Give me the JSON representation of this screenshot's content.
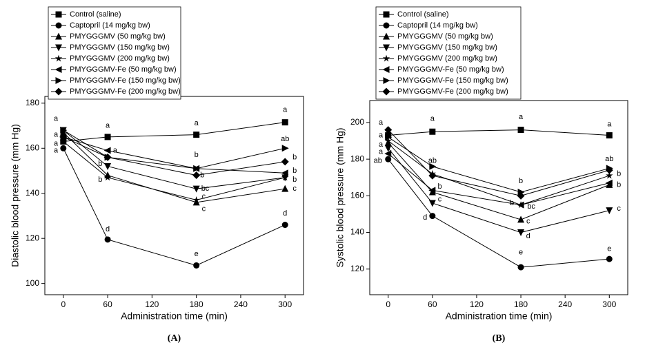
{
  "chart_data": [
    {
      "type": "line",
      "panel_label": "(A)",
      "xlabel": "Administration time (min)",
      "ylabel": "Diastolic blood pressure (mm Hg)",
      "x": [
        0,
        60,
        180,
        300
      ],
      "xlim": [
        -25,
        325
      ],
      "xticks": [
        0,
        60,
        120,
        180,
        240,
        300
      ],
      "ylim": [
        95,
        183
      ],
      "yticks": [
        100,
        120,
        140,
        160,
        180
      ],
      "series": [
        {
          "name": "Control (saline)",
          "marker": "square",
          "color": "#000000",
          "values": [
            163,
            165,
            166,
            171.5
          ]
        },
        {
          "name": "Captopril (14 mg/kg bw)",
          "marker": "circle",
          "color": "#000000",
          "values": [
            160,
            119.5,
            108,
            126
          ]
        },
        {
          "name": "PMYGGGMV (50 mg/kg bw)",
          "marker": "triangle-up",
          "color": "#000000",
          "values": [
            167,
            148,
            136,
            142
          ]
        },
        {
          "name": "PMYGGGMV (150 mg/kg bw)",
          "marker": "triangle-down",
          "color": "#000000",
          "values": [
            168,
            152,
            142,
            147
          ]
        },
        {
          "name": "PMYGGGMV (200 mg/kg bw)",
          "marker": "star",
          "color": "#000000",
          "values": [
            163,
            147,
            137,
            147
          ]
        },
        {
          "name": "PMYGGGMV-Fe (50 mg/kg bw)",
          "marker": "triangle-left",
          "color": "#000000",
          "values": [
            165,
            159,
            151,
            149
          ]
        },
        {
          "name": "PMYGGGMV-Fe (150 mg/kg bw)",
          "marker": "triangle-right",
          "color": "#000000",
          "values": [
            168,
            156,
            151,
            160
          ]
        },
        {
          "name": "PMYGGGMV-Fe (200 mg/kg bw)",
          "marker": "diamond",
          "color": "#000000",
          "values": [
            165,
            156,
            148,
            154
          ]
        }
      ],
      "annotations": [
        {
          "text": "a",
          "x": -10,
          "y": 173
        },
        {
          "text": "a",
          "x": -10,
          "y": 166
        },
        {
          "text": "a",
          "x": -10,
          "y": 162
        },
        {
          "text": "a",
          "x": -10,
          "y": 159
        },
        {
          "text": "a",
          "x": 60,
          "y": 170
        },
        {
          "text": "a",
          "x": 70,
          "y": 159
        },
        {
          "text": "b",
          "x": 50,
          "y": 153
        },
        {
          "text": "b",
          "x": 50,
          "y": 146
        },
        {
          "text": "d",
          "x": 60,
          "y": 124
        },
        {
          "text": "a",
          "x": 180,
          "y": 171
        },
        {
          "text": "b",
          "x": 180,
          "y": 157
        },
        {
          "text": "b",
          "x": 188,
          "y": 148
        },
        {
          "text": "bc",
          "x": 192,
          "y": 142
        },
        {
          "text": "c",
          "x": 190,
          "y": 138.5
        },
        {
          "text": "c",
          "x": 190,
          "y": 133
        },
        {
          "text": "e",
          "x": 180,
          "y": 113
        },
        {
          "text": "a",
          "x": 300,
          "y": 177
        },
        {
          "text": "ab",
          "x": 300,
          "y": 164
        },
        {
          "text": "b",
          "x": 313,
          "y": 156
        },
        {
          "text": "b",
          "x": 313,
          "y": 150
        },
        {
          "text": "b",
          "x": 313,
          "y": 146
        },
        {
          "text": "c",
          "x": 313,
          "y": 142
        },
        {
          "text": "d",
          "x": 300,
          "y": 131
        }
      ]
    },
    {
      "type": "line",
      "panel_label": "(B)",
      "xlabel": "Administration time (min)",
      "ylabel": "Systolic blood pressure (mm Hg)",
      "x": [
        0,
        60,
        180,
        300
      ],
      "xlim": [
        -25,
        325
      ],
      "xticks": [
        0,
        60,
        120,
        180,
        240,
        300
      ],
      "ylim": [
        106,
        212
      ],
      "yticks": [
        120,
        140,
        160,
        180,
        200
      ],
      "series": [
        {
          "name": "Control (saline)",
          "marker": "square",
          "color": "#000000",
          "values": [
            193,
            195,
            196,
            193
          ]
        },
        {
          "name": "Captopril (14 mg/kg bw)",
          "marker": "circle",
          "color": "#000000",
          "values": [
            180,
            149,
            121,
            125.5
          ]
        },
        {
          "name": "PMYGGGMV (50 mg/kg bw)",
          "marker": "triangle-up",
          "color": "#000000",
          "values": [
            189,
            162,
            147,
            166
          ]
        },
        {
          "name": "PMYGGGMV (150 mg/kg bw)",
          "marker": "triangle-down",
          "color": "#000000",
          "values": [
            186,
            156,
            140,
            152
          ]
        },
        {
          "name": "PMYGGGMV (200 mg/kg bw)",
          "marker": "star",
          "color": "#000000",
          "values": [
            190,
            172,
            155,
            171
          ]
        },
        {
          "name": "PMYGGGMV-Fe (50 mg/kg bw)",
          "marker": "triangle-left",
          "color": "#000000",
          "values": [
            183,
            163,
            155,
            167
          ]
        },
        {
          "name": "PMYGGGMV-Fe (150 mg/kg bw)",
          "marker": "triangle-right",
          "color": "#000000",
          "values": [
            192,
            176,
            162,
            175
          ]
        },
        {
          "name": "PMYGGGMV-Fe (200 mg/kg bw)",
          "marker": "diamond",
          "color": "#000000",
          "values": [
            196,
            171,
            160,
            174
          ]
        }
      ],
      "annotations": [
        {
          "text": "a",
          "x": -10,
          "y": 200
        },
        {
          "text": "a",
          "x": -10,
          "y": 193
        },
        {
          "text": "a",
          "x": -10,
          "y": 188
        },
        {
          "text": "a",
          "x": -10,
          "y": 184
        },
        {
          "text": "ab",
          "x": -14,
          "y": 179
        },
        {
          "text": "a",
          "x": 60,
          "y": 202
        },
        {
          "text": "ab",
          "x": 60,
          "y": 179
        },
        {
          "text": "b",
          "x": 70,
          "y": 165
        },
        {
          "text": "c",
          "x": 70,
          "y": 158
        },
        {
          "text": "d",
          "x": 50,
          "y": 148
        },
        {
          "text": "a",
          "x": 180,
          "y": 203
        },
        {
          "text": "b",
          "x": 180,
          "y": 168
        },
        {
          "text": "b",
          "x": 168,
          "y": 156
        },
        {
          "text": "bc",
          "x": 194,
          "y": 154
        },
        {
          "text": "c",
          "x": 190,
          "y": 146
        },
        {
          "text": "d",
          "x": 190,
          "y": 138
        },
        {
          "text": "e",
          "x": 180,
          "y": 129
        },
        {
          "text": "a",
          "x": 300,
          "y": 199
        },
        {
          "text": "ab",
          "x": 300,
          "y": 180
        },
        {
          "text": "b",
          "x": 313,
          "y": 172
        },
        {
          "text": "b",
          "x": 313,
          "y": 166
        },
        {
          "text": "c",
          "x": 313,
          "y": 153
        },
        {
          "text": "e",
          "x": 300,
          "y": 131
        }
      ]
    }
  ]
}
